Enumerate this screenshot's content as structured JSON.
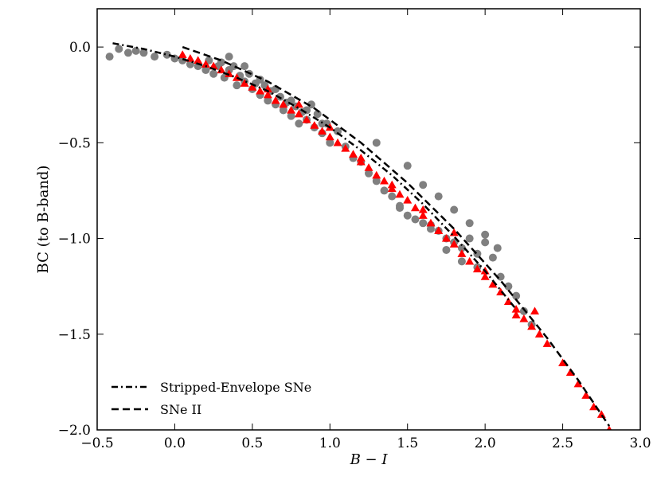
{
  "chart_data": {
    "type": "scatter",
    "title": "",
    "xlabel": "B − I",
    "ylabel": "BC (to B-band)",
    "xlim": [
      -0.5,
      3.0
    ],
    "ylim": [
      -2.0,
      0.2
    ],
    "xticks": [
      -0.5,
      0.0,
      0.5,
      1.0,
      1.5,
      2.0,
      2.5,
      3.0
    ],
    "xtick_labels": [
      "−0.5",
      "0.0",
      "0.5",
      "1.0",
      "1.5",
      "2.0",
      "2.5",
      "3.0"
    ],
    "yticks": [
      0.0,
      -0.5,
      -1.0,
      -1.5,
      -2.0
    ],
    "ytick_labels": [
      "0.0",
      "−0.5",
      "−1.0",
      "−1.5",
      "−2.0"
    ],
    "grid": false,
    "legend_position": "bottom-left",
    "series": [
      {
        "name": "Stripped-Envelope SNe",
        "kind": "line",
        "style": "dashdot",
        "color": "#000000",
        "x": [
          -0.4,
          -0.2,
          0.0,
          0.2,
          0.4,
          0.6,
          0.8,
          1.0,
          1.2,
          1.4,
          1.6,
          1.8,
          2.0,
          2.2
        ],
        "y": [
          0.02,
          -0.01,
          -0.05,
          -0.1,
          -0.16,
          -0.23,
          -0.32,
          -0.42,
          -0.54,
          -0.67,
          -0.82,
          -0.99,
          -1.17,
          -1.37
        ]
      },
      {
        "name": "SNe II",
        "kind": "line",
        "style": "dashed",
        "color": "#000000",
        "x": [
          0.05,
          0.3,
          0.6,
          0.9,
          1.2,
          1.5,
          1.8,
          2.1,
          2.4,
          2.6,
          2.8
        ],
        "y": [
          0.0,
          -0.07,
          -0.18,
          -0.32,
          -0.5,
          -0.71,
          -0.95,
          -1.22,
          -1.52,
          -1.74,
          -1.98
        ]
      },
      {
        "name": "Stripped-Envelope SNe data",
        "kind": "scatter",
        "marker": "circle",
        "color": "#808080",
        "x": [
          -0.42,
          -0.36,
          -0.3,
          -0.25,
          -0.2,
          -0.13,
          -0.05,
          0.0,
          0.05,
          0.1,
          0.15,
          0.2,
          0.22,
          0.25,
          0.28,
          0.3,
          0.32,
          0.35,
          0.38,
          0.4,
          0.42,
          0.45,
          0.48,
          0.5,
          0.52,
          0.55,
          0.58,
          0.6,
          0.62,
          0.65,
          0.68,
          0.7,
          0.72,
          0.75,
          0.78,
          0.8,
          0.82,
          0.85,
          0.88,
          0.9,
          0.92,
          0.95,
          0.98,
          1.0,
          1.05,
          1.1,
          1.15,
          1.2,
          1.25,
          1.3,
          1.35,
          1.4,
          1.45,
          1.5,
          1.55,
          1.6,
          1.65,
          1.7,
          1.75,
          1.8,
          1.85,
          1.9,
          1.95,
          2.0,
          2.05,
          2.1,
          2.15,
          2.2,
          2.25,
          2.3,
          0.35,
          0.45,
          0.55,
          0.65,
          0.75,
          0.85,
          0.95,
          1.3,
          1.5,
          1.6,
          1.7,
          1.8,
          1.9,
          2.0,
          2.08,
          1.45,
          1.65,
          1.75,
          1.85,
          1.95
        ],
        "y": [
          -0.05,
          -0.01,
          -0.03,
          -0.02,
          -0.03,
          -0.05,
          -0.04,
          -0.06,
          -0.07,
          -0.09,
          -0.1,
          -0.12,
          -0.07,
          -0.14,
          -0.1,
          -0.08,
          -0.16,
          -0.12,
          -0.1,
          -0.2,
          -0.15,
          -0.18,
          -0.14,
          -0.22,
          -0.19,
          -0.25,
          -0.2,
          -0.28,
          -0.23,
          -0.3,
          -0.26,
          -0.33,
          -0.29,
          -0.36,
          -0.31,
          -0.4,
          -0.34,
          -0.38,
          -0.3,
          -0.42,
          -0.35,
          -0.45,
          -0.4,
          -0.5,
          -0.44,
          -0.52,
          -0.58,
          -0.6,
          -0.66,
          -0.7,
          -0.75,
          -0.78,
          -0.84,
          -0.88,
          -0.9,
          -0.92,
          -0.95,
          -0.96,
          -1.0,
          -1.02,
          -1.05,
          -1.0,
          -1.08,
          -1.02,
          -1.1,
          -1.2,
          -1.25,
          -1.3,
          -1.38,
          -1.45,
          -0.05,
          -0.1,
          -0.17,
          -0.22,
          -0.28,
          -0.33,
          -0.4,
          -0.5,
          -0.62,
          -0.72,
          -0.78,
          -0.85,
          -0.92,
          -0.98,
          -1.05,
          -0.83,
          -0.93,
          -1.06,
          -1.12,
          -1.15
        ]
      },
      {
        "name": "SNe II data",
        "kind": "scatter",
        "marker": "triangle",
        "color": "#ff0000",
        "x": [
          0.05,
          0.1,
          0.15,
          0.2,
          0.25,
          0.3,
          0.35,
          0.4,
          0.45,
          0.5,
          0.55,
          0.6,
          0.65,
          0.7,
          0.75,
          0.8,
          0.85,
          0.9,
          0.95,
          1.0,
          1.05,
          1.1,
          1.15,
          1.2,
          1.25,
          1.3,
          1.35,
          1.4,
          1.45,
          1.5,
          1.55,
          1.6,
          1.65,
          1.7,
          1.75,
          1.8,
          1.85,
          1.9,
          1.95,
          2.0,
          2.05,
          2.1,
          2.15,
          2.2,
          2.25,
          2.3,
          2.35,
          2.4,
          2.5,
          2.55,
          2.6,
          2.65,
          2.7,
          2.75,
          2.8,
          0.6,
          0.8,
          1.0,
          1.2,
          1.4,
          1.6,
          1.8,
          2.0,
          2.2,
          2.32
        ],
        "y": [
          -0.04,
          -0.06,
          -0.07,
          -0.09,
          -0.1,
          -0.12,
          -0.14,
          -0.16,
          -0.19,
          -0.21,
          -0.23,
          -0.25,
          -0.28,
          -0.3,
          -0.33,
          -0.35,
          -0.38,
          -0.41,
          -0.44,
          -0.47,
          -0.5,
          -0.53,
          -0.56,
          -0.6,
          -0.63,
          -0.67,
          -0.7,
          -0.74,
          -0.77,
          -0.8,
          -0.84,
          -0.88,
          -0.92,
          -0.96,
          -1.0,
          -1.03,
          -1.08,
          -1.12,
          -1.16,
          -1.2,
          -1.24,
          -1.28,
          -1.33,
          -1.37,
          -1.42,
          -1.46,
          -1.5,
          -1.55,
          -1.65,
          -1.7,
          -1.76,
          -1.82,
          -1.88,
          -1.92,
          -2.0,
          -0.22,
          -0.3,
          -0.42,
          -0.58,
          -0.72,
          -0.85,
          -0.97,
          -1.17,
          -1.4,
          -1.38
        ]
      }
    ],
    "legend": [
      {
        "label": "Stripped-Envelope SNe",
        "style": "dashdot"
      },
      {
        "label": "SNe II",
        "style": "dashed"
      }
    ]
  }
}
